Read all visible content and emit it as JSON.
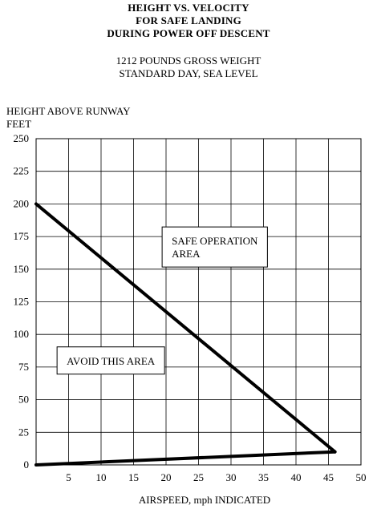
{
  "chart_data": {
    "type": "line",
    "title": [
      "HEIGHT VS. VELOCITY",
      "FOR SAFE LANDING",
      "DURING POWER OFF DESCENT"
    ],
    "subtitle": [
      "1212 POUNDS GROSS WEIGHT",
      "STANDARD DAY, SEA LEVEL"
    ],
    "ylabel": [
      "HEIGHT ABOVE RUNWAY",
      "FEET"
    ],
    "xlabel": "AIRSPEED, mph INDICATED",
    "xlim": [
      0,
      50
    ],
    "ylim": [
      0,
      250
    ],
    "x_ticks": [
      5,
      10,
      15,
      20,
      25,
      30,
      35,
      40,
      45,
      50
    ],
    "y_ticks": [
      0,
      25,
      50,
      75,
      100,
      125,
      150,
      175,
      200,
      225,
      250
    ],
    "grid": true,
    "series": [
      {
        "points": [
          [
            0,
            200
          ],
          [
            46,
            10
          ]
        ]
      },
      {
        "points": [
          [
            0,
            0
          ],
          [
            46,
            10
          ]
        ]
      }
    ],
    "annotations": [
      {
        "lines": [
          "SAFE OPERATION",
          "AREA"
        ],
        "x": 27.5,
        "y": 167
      },
      {
        "lines": [
          "AVOID THIS AREA"
        ],
        "x": 11.5,
        "y": 80
      }
    ],
    "colors": {
      "line": "#000000",
      "grid": "#000000"
    }
  }
}
